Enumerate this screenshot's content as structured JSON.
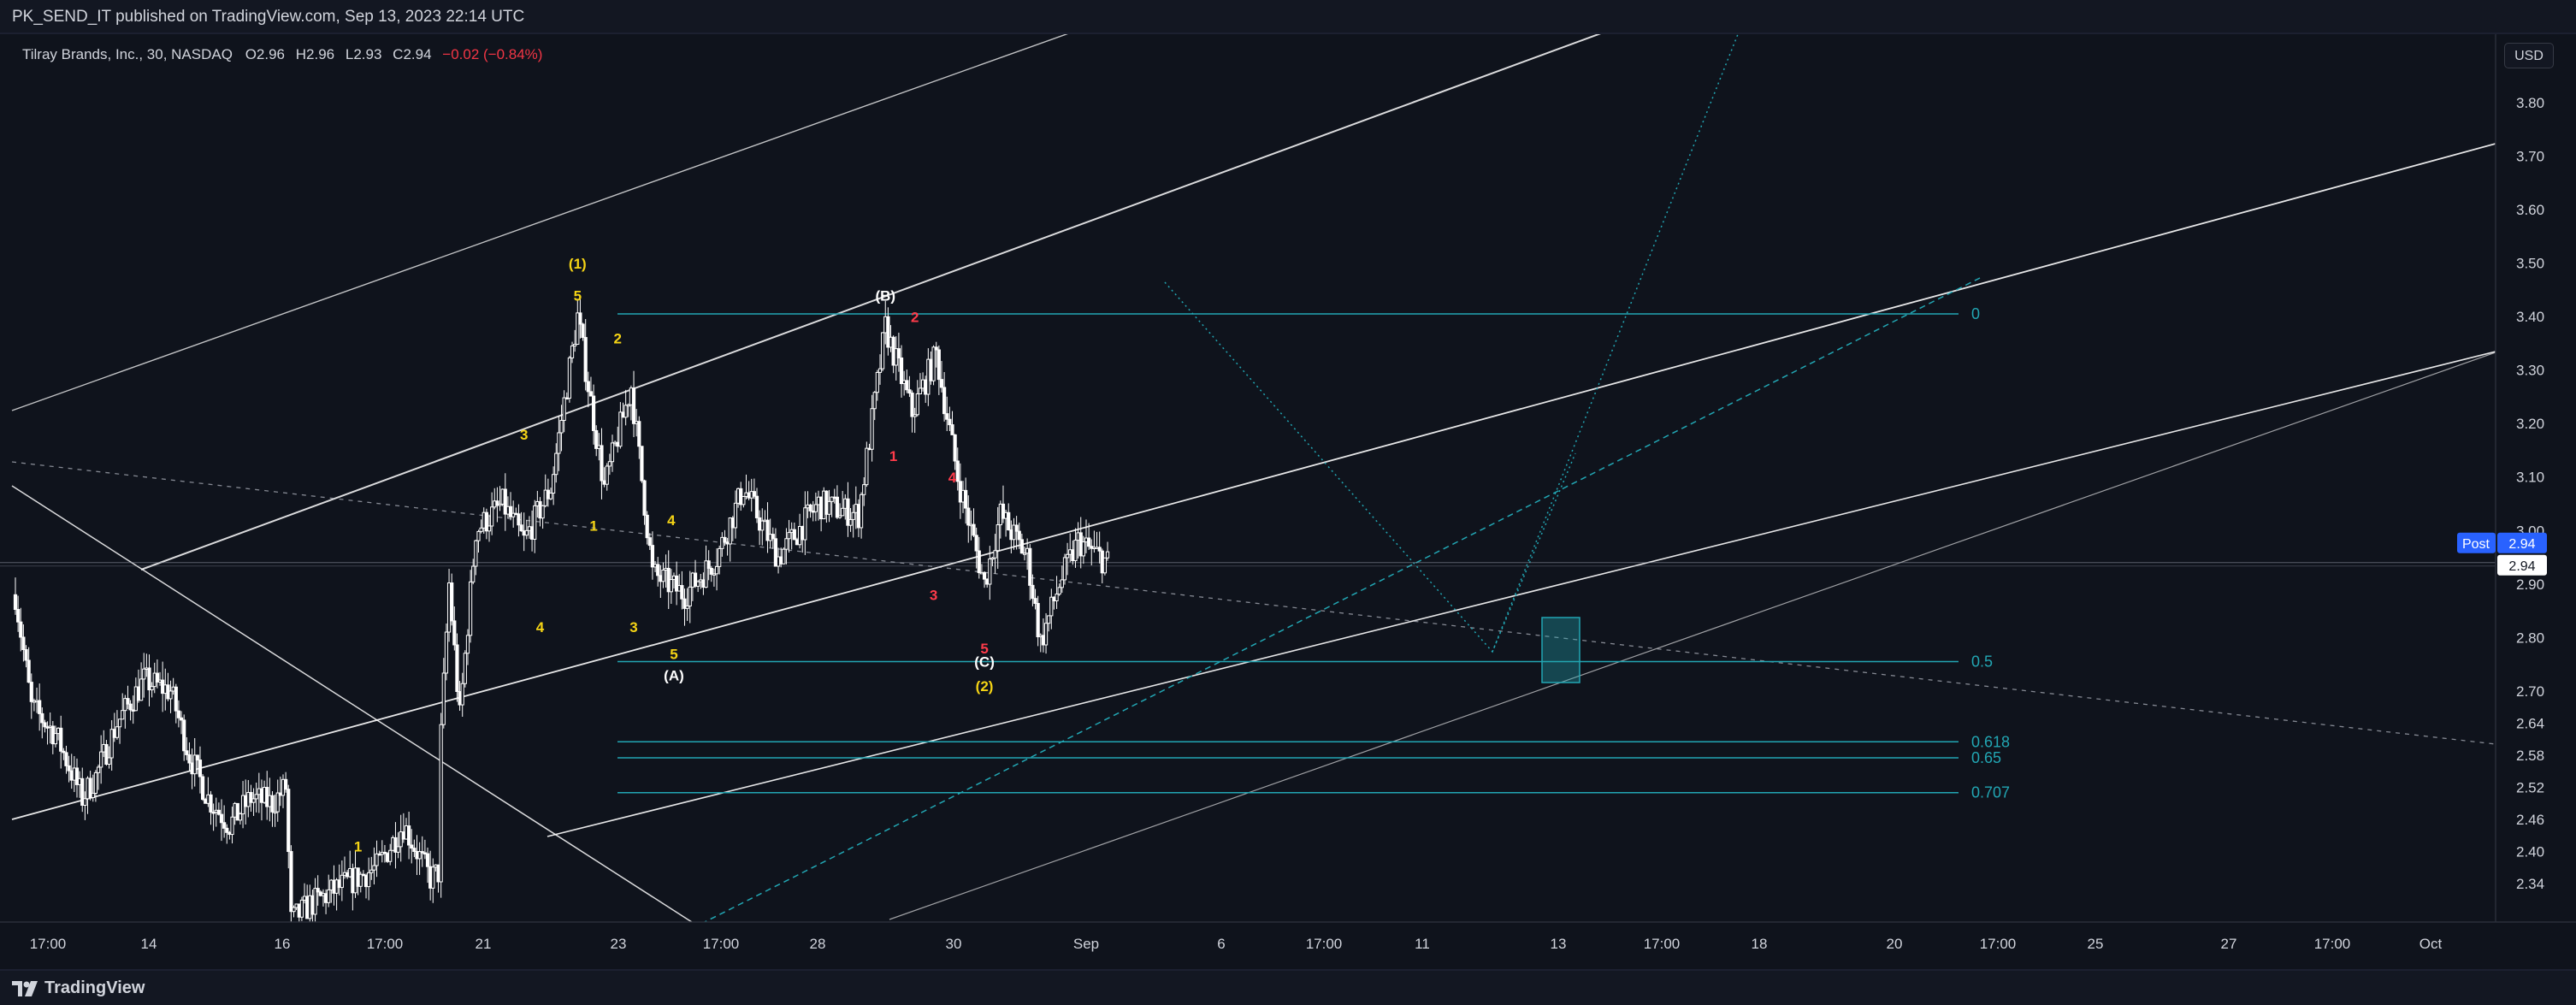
{
  "header": {
    "publish_line": "PK_SEND_IT published on TradingView.com, Sep 13, 2023 22:14 UTC"
  },
  "legend": {
    "symbol": "Tilray Brands, Inc., 30, NASDAQ",
    "open_label": "O",
    "open": "2.96",
    "high_label": "H",
    "high": "2.96",
    "low_label": "L",
    "low": "2.93",
    "close_label": "C",
    "close": "2.94",
    "change": "−0.02 (−0.84%)"
  },
  "currency_button": "USD",
  "footer": {
    "brand": "TradingView"
  },
  "colors": {
    "background": "#0f131c",
    "candle": "#ffffff",
    "fib": "#22a6b3",
    "wave_yellow": "#f5d415",
    "wave_red": "#ff3b4a",
    "wave_white": "#ffffff",
    "post_tag": "#2962ff"
  },
  "chart_data": {
    "type": "candlestick",
    "title": "Tilray Brands, Inc., 30, NASDAQ",
    "interval": "30",
    "y_axis": {
      "ylim": [
        2.285,
        3.885
      ],
      "tick_labels": [
        "3.80",
        "3.70",
        "3.60",
        "3.50",
        "3.40",
        "3.30",
        "3.20",
        "3.10",
        "3.00",
        "2.90",
        "2.80",
        "2.70",
        "2.64",
        "2.58",
        "2.52",
        "2.46",
        "2.40",
        "2.34"
      ],
      "price_tags": [
        {
          "label": "Post",
          "value": "2.94"
        },
        {
          "label": "",
          "value": "2.94"
        }
      ]
    },
    "x_axis": {
      "tick_labels": [
        "17:00",
        "14",
        "16",
        "17:00",
        "21",
        "23",
        "17:00",
        "28",
        "30",
        "Sep",
        "6",
        "17:00",
        "11",
        "13",
        "17:00",
        "18",
        "20",
        "17:00",
        "25",
        "27",
        "17:00",
        "Oct"
      ]
    },
    "price_path": [
      [
        0,
        2.88
      ],
      [
        6,
        2.67
      ],
      [
        15,
        2.62
      ],
      [
        25,
        2.5
      ],
      [
        30,
        2.54
      ],
      [
        38,
        2.64
      ],
      [
        48,
        2.72
      ],
      [
        58,
        2.7
      ],
      [
        65,
        2.58
      ],
      [
        72,
        2.5
      ],
      [
        80,
        2.45
      ],
      [
        88,
        2.5
      ],
      [
        96,
        2.49
      ],
      [
        101,
        2.52
      ],
      [
        103,
        2.27
      ],
      [
        110,
        2.3
      ],
      [
        120,
        2.33
      ],
      [
        135,
        2.37
      ],
      [
        145,
        2.45
      ],
      [
        155,
        2.35
      ],
      [
        158,
        2.36
      ],
      [
        159,
        2.62
      ],
      [
        162,
        2.9
      ],
      [
        166,
        2.65
      ],
      [
        172,
        3.0
      ],
      [
        182,
        3.05
      ],
      [
        190,
        2.98
      ],
      [
        200,
        3.08
      ],
      [
        210,
        3.4
      ],
      [
        220,
        3.08
      ],
      [
        230,
        3.27
      ],
      [
        238,
        2.92
      ],
      [
        250,
        2.88
      ],
      [
        262,
        2.95
      ],
      [
        272,
        3.08
      ],
      [
        285,
        2.95
      ],
      [
        300,
        3.05
      ],
      [
        315,
        3.03
      ],
      [
        325,
        3.38
      ],
      [
        335,
        3.22
      ],
      [
        344,
        3.33
      ],
      [
        352,
        3.1
      ],
      [
        362,
        2.9
      ],
      [
        368,
        3.03
      ],
      [
        378,
        2.95
      ],
      [
        383,
        2.79
      ],
      [
        390,
        2.9
      ],
      [
        397,
        2.98
      ],
      [
        408,
        2.94
      ]
    ],
    "fibonacci": [
      {
        "label": "0",
        "price": 3.405
      },
      {
        "label": "0.5",
        "price": 2.755
      },
      {
        "label": "0.618",
        "price": 2.605
      },
      {
        "label": "0.65",
        "price": 2.575
      },
      {
        "label": "0.707",
        "price": 2.51
      }
    ],
    "wave_labels": [
      {
        "text": "(1)",
        "color": "yellow",
        "bar": 210,
        "price": 3.49
      },
      {
        "text": "5",
        "color": "yellow",
        "bar": 210,
        "price": 3.43
      },
      {
        "text": "(B)",
        "color": "white",
        "bar": 325,
        "price": 3.43
      },
      {
        "text": "2",
        "color": "red",
        "bar": 336,
        "price": 3.39
      },
      {
        "text": "2",
        "color": "yellow",
        "bar": 225,
        "price": 3.35
      },
      {
        "text": "3",
        "color": "yellow",
        "bar": 190,
        "price": 3.17
      },
      {
        "text": "1",
        "color": "red",
        "bar": 328,
        "price": 3.13
      },
      {
        "text": "4",
        "color": "red",
        "bar": 350,
        "price": 3.09
      },
      {
        "text": "1",
        "color": "yellow",
        "bar": 216,
        "price": 3.0
      },
      {
        "text": "4",
        "color": "yellow",
        "bar": 245,
        "price": 3.01
      },
      {
        "text": "3",
        "color": "red",
        "bar": 343,
        "price": 2.87
      },
      {
        "text": "4",
        "color": "yellow",
        "bar": 196,
        "price": 2.81
      },
      {
        "text": "3",
        "color": "yellow",
        "bar": 231,
        "price": 2.81
      },
      {
        "text": "5",
        "color": "yellow",
        "bar": 246,
        "price": 2.76
      },
      {
        "text": "5",
        "color": "red",
        "bar": 362,
        "price": 2.77
      },
      {
        "text": "(C)",
        "color": "white",
        "bar": 362,
        "price": 2.745
      },
      {
        "text": "(A)",
        "color": "white",
        "bar": 246,
        "price": 2.72
      },
      {
        "text": "(2)",
        "color": "yellow",
        "bar": 362,
        "price": 2.7
      },
      {
        "text": "1",
        "color": "yellow",
        "bar": 128,
        "price": 2.4
      }
    ]
  }
}
